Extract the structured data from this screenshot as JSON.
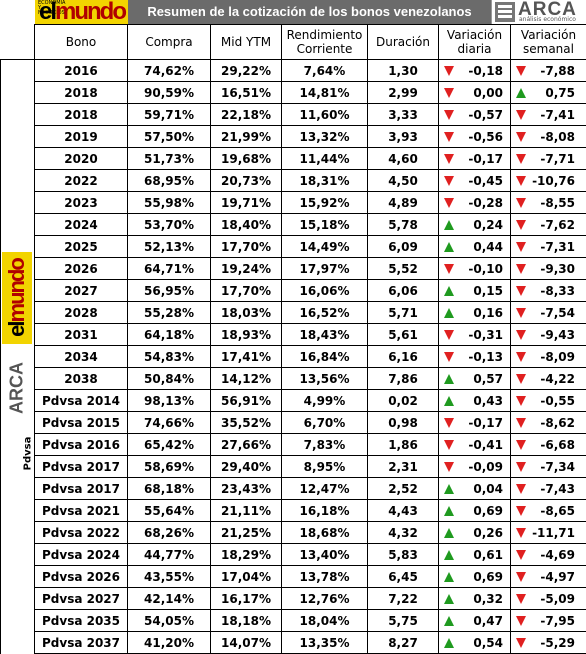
{
  "header": {
    "title": "Resumen de la cotización de los bonos venezolanos",
    "logo_left": "elmundo",
    "logo_left_tag": "ECONOMÍA Y NEGOCIOS",
    "logo_right": "ARCA",
    "logo_right_sub": "análisis económico"
  },
  "columns": [
    "Bono",
    "Compra",
    "Mid YTM",
    "Rendimiento Corriente",
    "Duración",
    "Variación diaria",
    "Variación semanal"
  ],
  "side_label_pdvsa": "Pdvsa",
  "colors": {
    "down": "#e02020",
    "up": "#1f9a1f",
    "title_bg": "#6b6b6b",
    "logo_yellow": "#f2d400"
  },
  "rows": [
    {
      "bono": "2016",
      "compra": "74,62%",
      "ytm": "29,22%",
      "rend": "7,64%",
      "dur": "1,30",
      "vd": "-0,18",
      "vd_dir": "down",
      "vs": "-7,88",
      "vs_dir": "down"
    },
    {
      "bono": "2018",
      "compra": "90,59%",
      "ytm": "16,51%",
      "rend": "14,81%",
      "dur": "2,99",
      "vd": "0,00",
      "vd_dir": "down",
      "vs": "0,75",
      "vs_dir": "up"
    },
    {
      "bono": "2018",
      "compra": "59,71%",
      "ytm": "22,18%",
      "rend": "11,60%",
      "dur": "3,33",
      "vd": "-0,57",
      "vd_dir": "down",
      "vs": "-7,41",
      "vs_dir": "down"
    },
    {
      "bono": "2019",
      "compra": "57,50%",
      "ytm": "21,99%",
      "rend": "13,32%",
      "dur": "3,93",
      "vd": "-0,56",
      "vd_dir": "down",
      "vs": "-8,08",
      "vs_dir": "down"
    },
    {
      "bono": "2020",
      "compra": "51,73%",
      "ytm": "19,68%",
      "rend": "11,44%",
      "dur": "4,60",
      "vd": "-0,17",
      "vd_dir": "down",
      "vs": "-7,71",
      "vs_dir": "down"
    },
    {
      "bono": "2022",
      "compra": "68,95%",
      "ytm": "20,73%",
      "rend": "18,31%",
      "dur": "4,50",
      "vd": "-0,45",
      "vd_dir": "down",
      "vs": "-10,76",
      "vs_dir": "down"
    },
    {
      "bono": "2023",
      "compra": "55,98%",
      "ytm": "19,71%",
      "rend": "15,92%",
      "dur": "4,89",
      "vd": "-0,28",
      "vd_dir": "down",
      "vs": "-8,55",
      "vs_dir": "down"
    },
    {
      "bono": "2024",
      "compra": "53,70%",
      "ytm": "18,40%",
      "rend": "15,18%",
      "dur": "5,78",
      "vd": "0,24",
      "vd_dir": "up",
      "vs": "-7,62",
      "vs_dir": "down"
    },
    {
      "bono": "2025",
      "compra": "52,13%",
      "ytm": "17,70%",
      "rend": "14,49%",
      "dur": "6,09",
      "vd": "0,44",
      "vd_dir": "up",
      "vs": "-7,31",
      "vs_dir": "down"
    },
    {
      "bono": "2026",
      "compra": "64,71%",
      "ytm": "19,24%",
      "rend": "17,97%",
      "dur": "5,52",
      "vd": "-0,10",
      "vd_dir": "down",
      "vs": "-9,30",
      "vs_dir": "down"
    },
    {
      "bono": "2027",
      "compra": "56,95%",
      "ytm": "17,70%",
      "rend": "16,06%",
      "dur": "6,06",
      "vd": "0,15",
      "vd_dir": "up",
      "vs": "-8,33",
      "vs_dir": "down"
    },
    {
      "bono": "2028",
      "compra": "55,28%",
      "ytm": "18,03%",
      "rend": "16,52%",
      "dur": "5,71",
      "vd": "0,16",
      "vd_dir": "up",
      "vs": "-7,54",
      "vs_dir": "down"
    },
    {
      "bono": "2031",
      "compra": "64,18%",
      "ytm": "18,93%",
      "rend": "18,43%",
      "dur": "5,61",
      "vd": "-0,31",
      "vd_dir": "down",
      "vs": "-9,43",
      "vs_dir": "down"
    },
    {
      "bono": "2034",
      "compra": "54,83%",
      "ytm": "17,41%",
      "rend": "16,84%",
      "dur": "6,16",
      "vd": "-0,13",
      "vd_dir": "down",
      "vs": "-8,09",
      "vs_dir": "down"
    },
    {
      "bono": "2038",
      "compra": "50,84%",
      "ytm": "14,12%",
      "rend": "13,56%",
      "dur": "7,86",
      "vd": "0,57",
      "vd_dir": "up",
      "vs": "-4,22",
      "vs_dir": "down"
    },
    {
      "bono": "Pdvsa 2014",
      "compra": "98,13%",
      "ytm": "56,91%",
      "rend": "4,99%",
      "dur": "0,02",
      "vd": "0,43",
      "vd_dir": "up",
      "vs": "-0,55",
      "vs_dir": "down"
    },
    {
      "bono": "Pdvsa 2015",
      "compra": "74,66%",
      "ytm": "35,52%",
      "rend": "6,70%",
      "dur": "0,98",
      "vd": "-0,17",
      "vd_dir": "down",
      "vs": "-8,62",
      "vs_dir": "down"
    },
    {
      "bono": "Pdvsa 2016",
      "compra": "65,42%",
      "ytm": "27,66%",
      "rend": "7,83%",
      "dur": "1,86",
      "vd": "-0,41",
      "vd_dir": "down",
      "vs": "-6,68",
      "vs_dir": "down"
    },
    {
      "bono": "Pdvsa 2017",
      "compra": "58,69%",
      "ytm": "29,40%",
      "rend": "8,95%",
      "dur": "2,31",
      "vd": "-0,09",
      "vd_dir": "down",
      "vs": "-7,34",
      "vs_dir": "down"
    },
    {
      "bono": "Pdvsa 2017",
      "compra": "68,18%",
      "ytm": "23,43%",
      "rend": "12,47%",
      "dur": "2,52",
      "vd": "0,04",
      "vd_dir": "up",
      "vs": "-7,43",
      "vs_dir": "down"
    },
    {
      "bono": "Pdvsa 2021",
      "compra": "55,64%",
      "ytm": "21,11%",
      "rend": "16,18%",
      "dur": "4,43",
      "vd": "0,69",
      "vd_dir": "up",
      "vs": "-8,65",
      "vs_dir": "down"
    },
    {
      "bono": "Pdvsa 2022",
      "compra": "68,26%",
      "ytm": "21,25%",
      "rend": "18,68%",
      "dur": "4,32",
      "vd": "0,26",
      "vd_dir": "up",
      "vs": "-11,71",
      "vs_dir": "down"
    },
    {
      "bono": "Pdvsa 2024",
      "compra": "44,77%",
      "ytm": "18,29%",
      "rend": "13,40%",
      "dur": "5,83",
      "vd": "0,61",
      "vd_dir": "up",
      "vs": "-4,69",
      "vs_dir": "down"
    },
    {
      "bono": "Pdvsa 2026",
      "compra": "43,55%",
      "ytm": "17,04%",
      "rend": "13,78%",
      "dur": "6,45",
      "vd": "0,69",
      "vd_dir": "up",
      "vs": "-4,97",
      "vs_dir": "down"
    },
    {
      "bono": "Pdvsa 2027",
      "compra": "42,14%",
      "ytm": "16,17%",
      "rend": "12,76%",
      "dur": "7,22",
      "vd": "0,32",
      "vd_dir": "up",
      "vs": "-5,09",
      "vs_dir": "down"
    },
    {
      "bono": "Pdvsa 2035",
      "compra": "54,05%",
      "ytm": "18,18%",
      "rend": "18,04%",
      "dur": "5,75",
      "vd": "0,47",
      "vd_dir": "up",
      "vs": "-7,95",
      "vs_dir": "down"
    },
    {
      "bono": "Pdvsa 2037",
      "compra": "41,20%",
      "ytm": "14,07%",
      "rend": "13,35%",
      "dur": "8,27",
      "vd": "0,54",
      "vd_dir": "up",
      "vs": "-5,29",
      "vs_dir": "down"
    }
  ]
}
